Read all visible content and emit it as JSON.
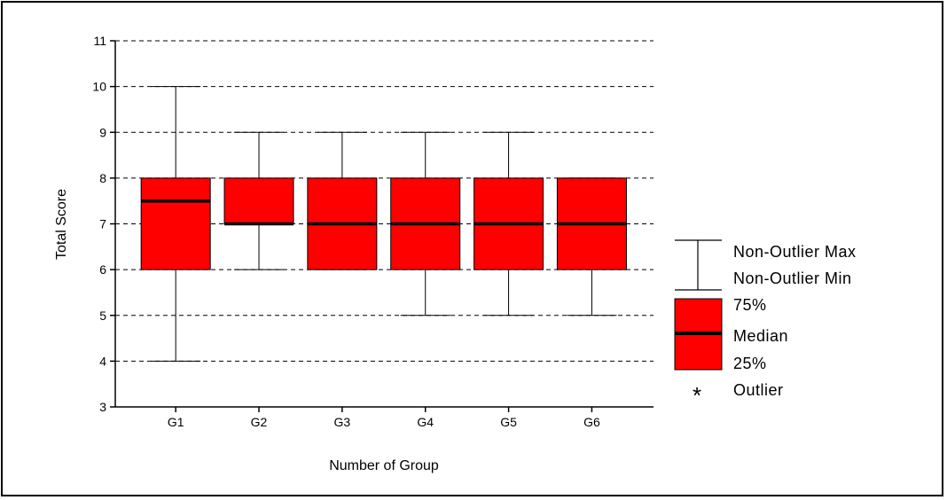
{
  "chart_data": {
    "type": "boxplot",
    "title": "",
    "xlabel": "Number of Group",
    "ylabel": "Total Score",
    "ylim": [
      3,
      11
    ],
    "yticks": [
      3,
      4,
      5,
      6,
      7,
      8,
      9,
      10,
      11
    ],
    "grid": "horizontal-dashed",
    "legend_placement": "right",
    "categories": [
      "G1",
      "G2",
      "G3",
      "G4",
      "G5",
      "G6"
    ],
    "boxes": [
      {
        "label": "G1",
        "min": 4,
        "q1": 6,
        "median": 7.5,
        "q3": 8,
        "max": 10
      },
      {
        "label": "G2",
        "min": 6,
        "q1": 7,
        "median": 7,
        "q3": 8,
        "max": 9
      },
      {
        "label": "G3",
        "min": 6,
        "q1": 6,
        "median": 7,
        "q3": 8,
        "max": 9
      },
      {
        "label": "G4",
        "min": 5,
        "q1": 6,
        "median": 7,
        "q3": 8,
        "max": 9
      },
      {
        "label": "G5",
        "min": 5,
        "q1": 6,
        "median": 7,
        "q3": 8,
        "max": 9
      },
      {
        "label": "G6",
        "min": 5,
        "q1": 6,
        "median": 7,
        "q3": 8,
        "max": 8
      }
    ],
    "box_color": "#ff0000",
    "legend": {
      "max_label": "Non-Outlier Max",
      "min_label": "Non-Outlier Min",
      "q3_label": "75%",
      "median_label": "Median",
      "q1_label": "25%",
      "outlier_symbol": "*",
      "outlier_label": "Outlier"
    }
  }
}
